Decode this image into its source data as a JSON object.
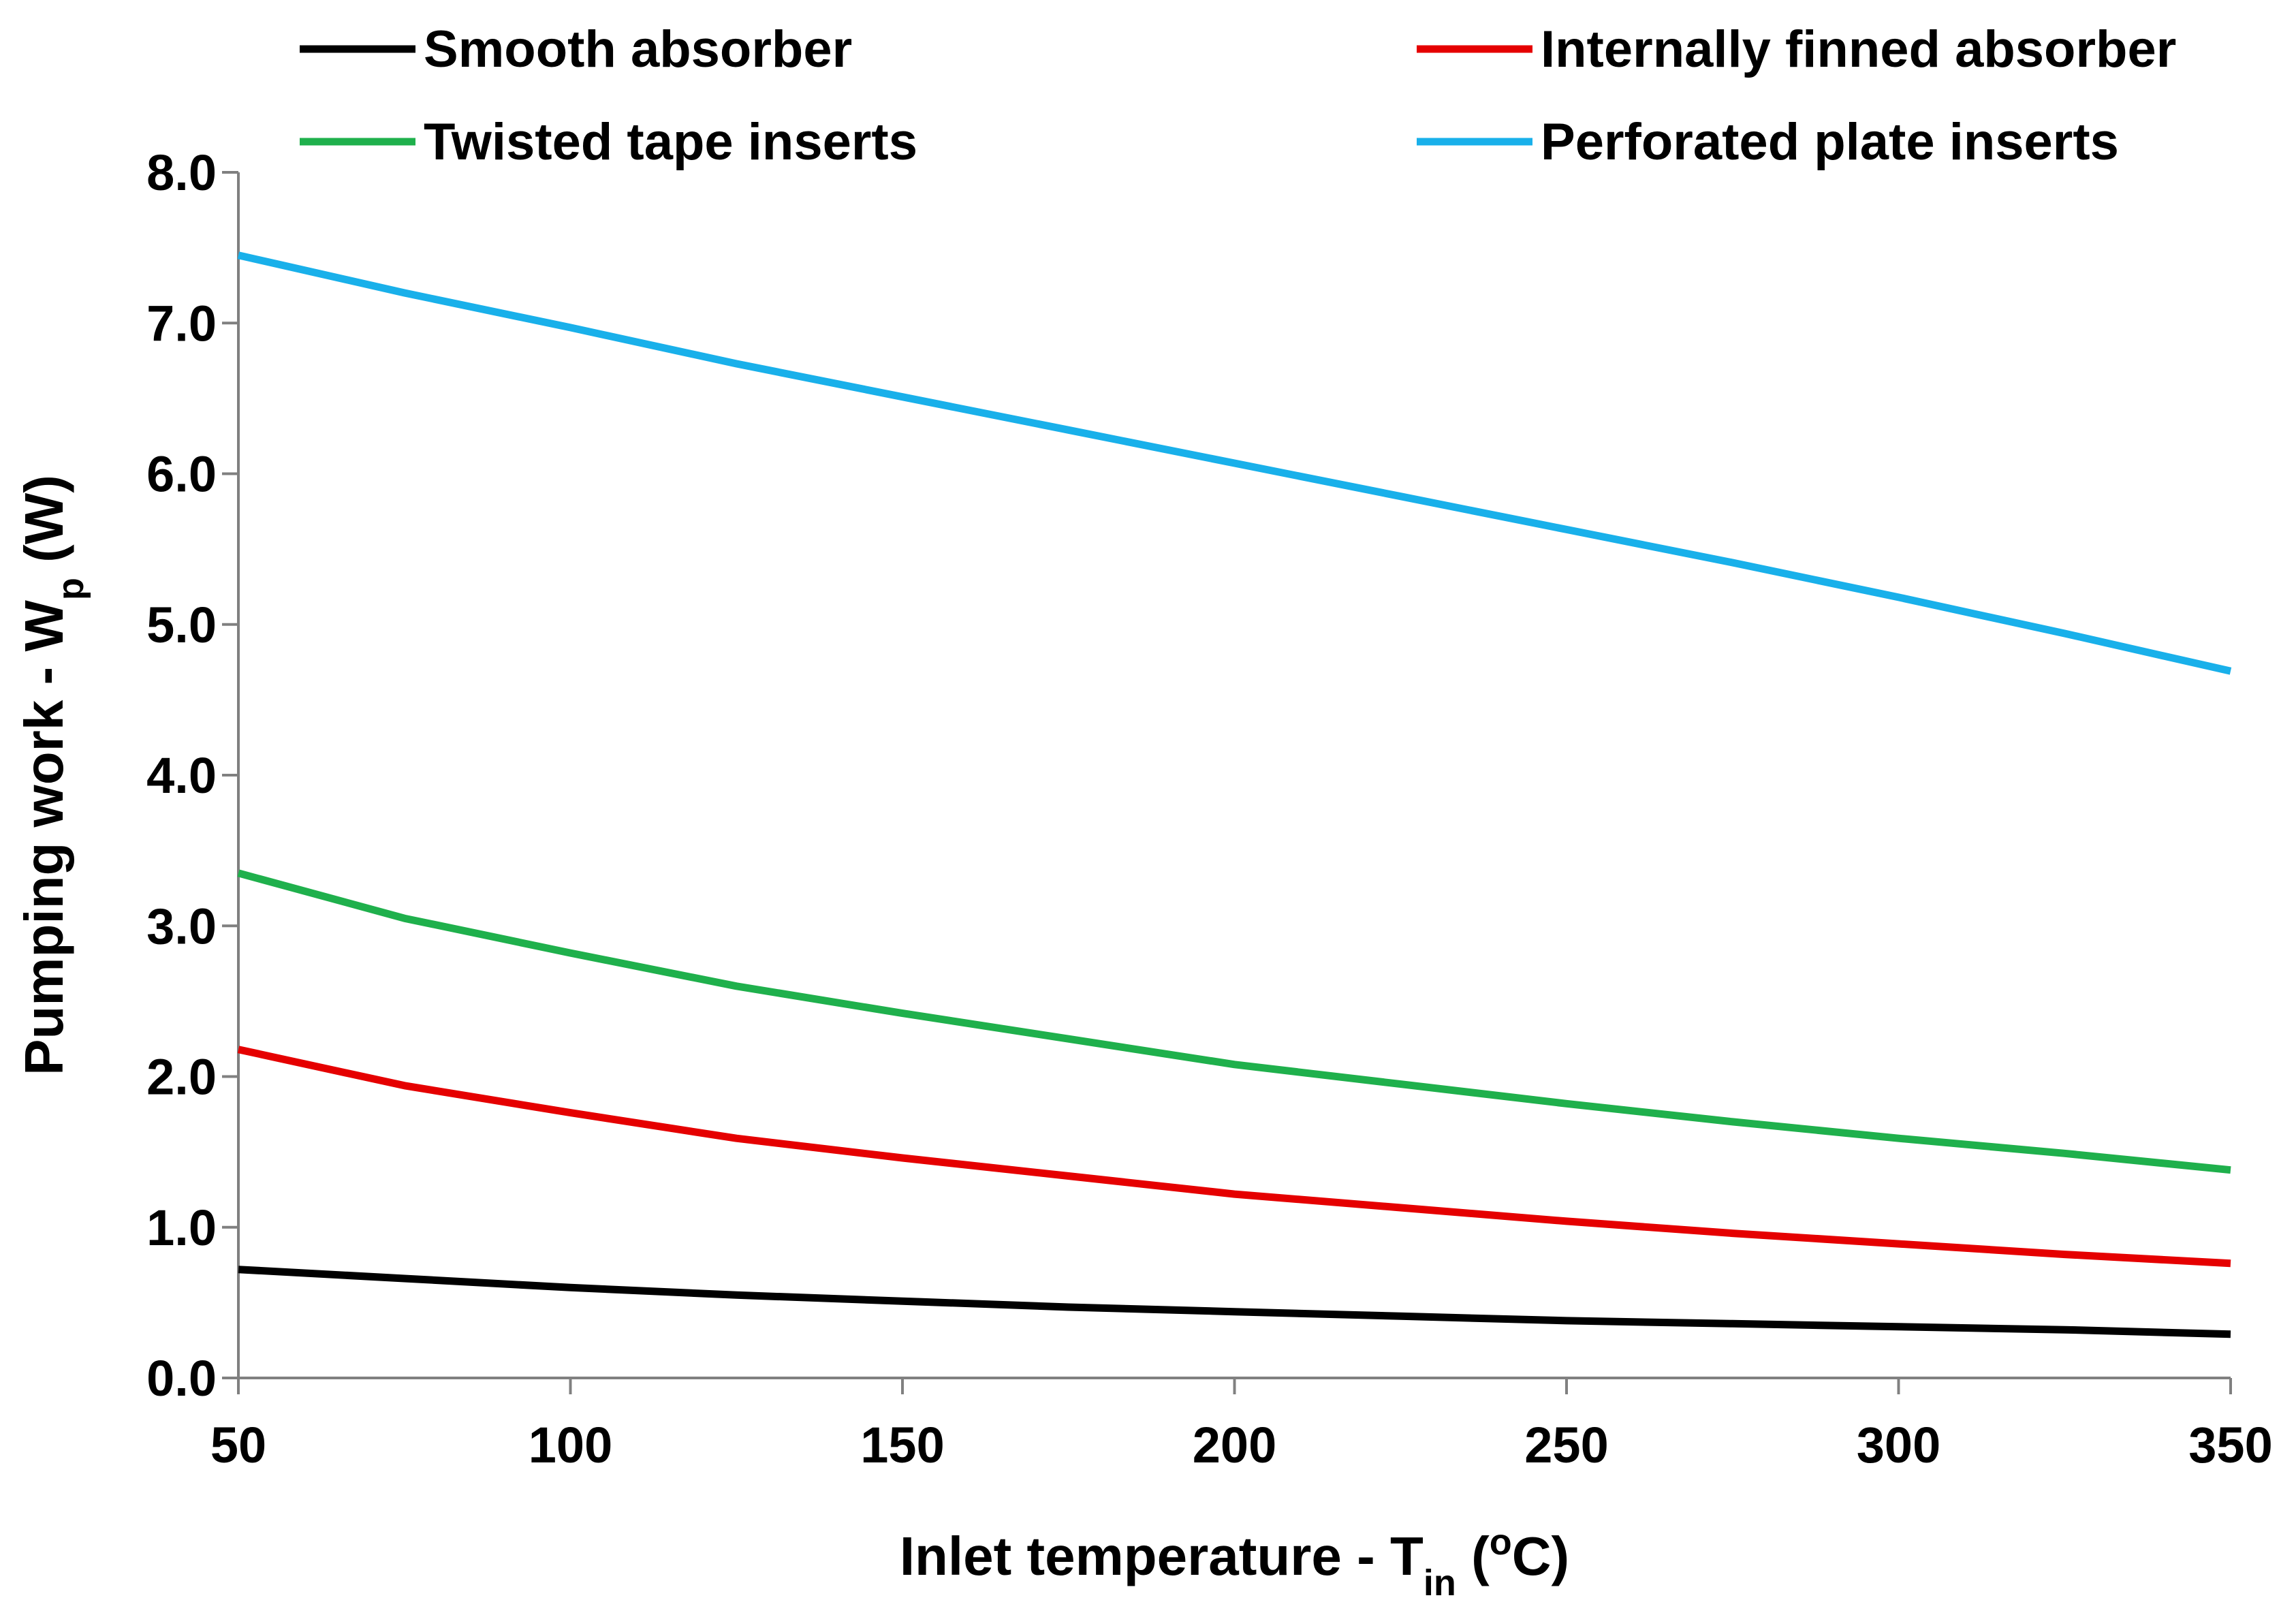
{
  "chart_data": {
    "type": "line",
    "title": "",
    "xlabel": {
      "main": "Inlet temperature - T",
      "sub": "in",
      "after_sub": " (",
      "sup": "o",
      "tail": "C)"
    },
    "ylabel": {
      "main": "Pumping work - W",
      "sub": "p",
      "tail": " (W)"
    },
    "xlim": [
      50,
      350
    ],
    "ylim": [
      0,
      8
    ],
    "x_ticks": [
      {
        "value": 50,
        "label": "50"
      },
      {
        "value": 100,
        "label": "100"
      },
      {
        "value": 150,
        "label": "150"
      },
      {
        "value": 200,
        "label": "200"
      },
      {
        "value": 250,
        "label": "250"
      },
      {
        "value": 300,
        "label": "300"
      },
      {
        "value": 350,
        "label": "350"
      }
    ],
    "y_ticks": [
      {
        "value": 0,
        "label": "0.0"
      },
      {
        "value": 1,
        "label": "1.0"
      },
      {
        "value": 2,
        "label": "2.0"
      },
      {
        "value": 3,
        "label": "3.0"
      },
      {
        "value": 4,
        "label": "4.0"
      },
      {
        "value": 5,
        "label": "5.0"
      },
      {
        "value": 6,
        "label": "6.0"
      },
      {
        "value": 7,
        "label": "7.0"
      },
      {
        "value": 8,
        "label": "8.0"
      }
    ],
    "grid": false,
    "legend_position": "top",
    "x": [
      50,
      75,
      100,
      125,
      150,
      175,
      200,
      225,
      250,
      275,
      300,
      325,
      350
    ],
    "series": [
      {
        "name": "Smooth absorber",
        "color": "#000000",
        "values": [
          0.72,
          0.66,
          0.6,
          0.55,
          0.51,
          0.47,
          0.44,
          0.41,
          0.38,
          0.36,
          0.34,
          0.32,
          0.29
        ]
      },
      {
        "name": "Internally finned absorber",
        "color": "#e50000",
        "values": [
          2.18,
          1.94,
          1.76,
          1.59,
          1.46,
          1.34,
          1.22,
          1.13,
          1.04,
          0.96,
          0.89,
          0.82,
          0.76
        ]
      },
      {
        "name": "Twisted tape inserts",
        "color": "#1fb04c",
        "values": [
          3.35,
          3.05,
          2.82,
          2.6,
          2.42,
          2.25,
          2.08,
          1.95,
          1.82,
          1.7,
          1.59,
          1.49,
          1.38
        ]
      },
      {
        "name": "Perforated plate inserts",
        "color": "#19b0ea",
        "values": [
          7.45,
          7.2,
          6.97,
          6.73,
          6.51,
          6.29,
          6.07,
          5.85,
          5.63,
          5.41,
          5.18,
          4.94,
          4.69
        ]
      }
    ]
  }
}
